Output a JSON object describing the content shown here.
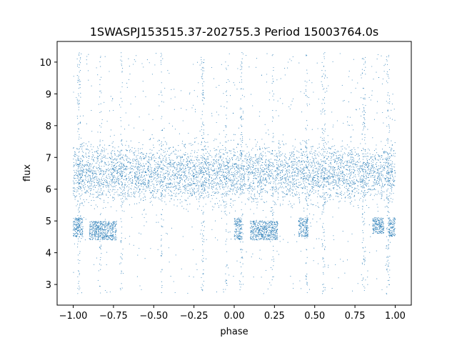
{
  "chart_data": {
    "type": "scatter",
    "title": "1SWASPJ153515.37-202755.3 Period 15003764.0s",
    "xlabel": "phase",
    "ylabel": "flux",
    "xlim": [
      -1.1,
      1.1
    ],
    "ylim": [
      2.35,
      10.65
    ],
    "xticks": [
      -1.0,
      -0.75,
      -0.5,
      -0.25,
      0.0,
      0.25,
      0.5,
      0.75,
      1.0
    ],
    "xtick_labels": [
      "−1.00",
      "−0.75",
      "−0.50",
      "−0.25",
      "0.00",
      "0.25",
      "0.50",
      "0.75",
      "1.00"
    ],
    "yticks": [
      3,
      4,
      5,
      6,
      7,
      8,
      9,
      10
    ],
    "ytick_labels": [
      "3",
      "4",
      "5",
      "6",
      "7",
      "8",
      "9",
      "10"
    ],
    "grid": false,
    "marker_color": "#1f77b4",
    "series": [
      {
        "x_range": [
          -1.0,
          1.0
        ],
        "main_band": {
          "center": 6.5,
          "spread": 0.45,
          "range": [
            5.6,
            7.5
          ]
        },
        "upper_scatter_range": [
          7.5,
          10.3
        ],
        "lower_scatter_range": [
          2.7,
          5.6
        ],
        "low_clusters": [
          {
            "x": [
              -1.0,
              -0.94
            ],
            "y": [
              4.5,
              5.1
            ]
          },
          {
            "x": [
              -0.9,
              -0.73
            ],
            "y": [
              4.4,
              5.0
            ]
          },
          {
            "x": [
              0.0,
              0.05
            ],
            "y": [
              4.4,
              5.1
            ]
          },
          {
            "x": [
              0.1,
              0.27
            ],
            "y": [
              4.4,
              5.0
            ]
          },
          {
            "x": [
              0.4,
              0.46
            ],
            "y": [
              4.5,
              5.1
            ]
          },
          {
            "x": [
              0.86,
              0.93
            ],
            "y": [
              4.6,
              5.1
            ]
          },
          {
            "x": [
              0.96,
              1.0
            ],
            "y": [
              4.5,
              5.1
            ]
          }
        ],
        "spike_phases": [
          -0.97,
          -0.96,
          -0.83,
          -0.7,
          -0.45,
          -0.2,
          -0.19,
          -0.05,
          0.04,
          0.05,
          0.24,
          0.45,
          0.55,
          0.56,
          0.8,
          0.81,
          0.95,
          0.96
        ]
      }
    ]
  }
}
